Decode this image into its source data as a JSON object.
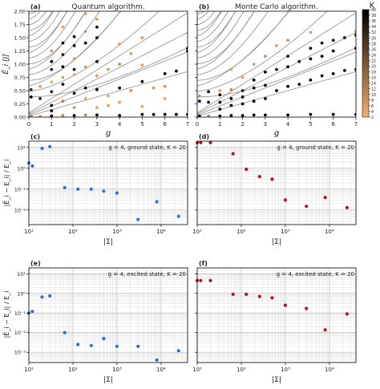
{
  "colors": {
    "blue": "#2f6fd6",
    "red": "#b0141c",
    "orange": "#f0a060",
    "black": "#000000",
    "curve": "#8c8c8c"
  },
  "top_panels": [
    {
      "label": "(a)",
      "title": "Quantum algorithm."
    },
    {
      "label": "(b)",
      "title": "Monte Carlo algorithm."
    }
  ],
  "top_axes": {
    "ylabel": "Ẽ_i [J]",
    "xlabel": "g",
    "xticks": [
      "0",
      "1",
      "2",
      "3",
      "4",
      "5",
      "6",
      "7"
    ],
    "yticks": [
      "0.00",
      "0.25",
      "0.50",
      "0.75",
      "1.00",
      "1.25",
      "1.50",
      "1.75",
      "2.00"
    ]
  },
  "colorbar": {
    "label": "K",
    "ticks": [
      "40",
      "38",
      "36",
      "34",
      "32",
      "30",
      "28",
      "26",
      "24",
      "22",
      "20",
      "18",
      "16",
      "14",
      "12",
      "10",
      "8",
      "6",
      "4",
      "2"
    ]
  },
  "bottom_axes": {
    "ylabel": "|Ẽ_i − E_i| / E_i",
    "xlabel": "|Σ|",
    "xticks": [
      "10¹",
      "10²",
      "10³",
      "10⁴"
    ],
    "yticks_cd": [
      "10⁻²",
      "10⁻¹",
      "10⁰",
      "10¹"
    ],
    "yticks_ef": [
      "10⁻³",
      "10⁻²",
      "10⁻¹",
      "10⁰",
      "10¹"
    ]
  },
  "chart_data": [
    {
      "type": "scatter",
      "panel": "(c)",
      "annotation": "g = 4, ground state, K = 20",
      "color": "blue",
      "xscale": "log",
      "yscale": "log",
      "xlim": [
        10,
        40000
      ],
      "ylim": [
        0.002,
        20
      ],
      "x": [
        10,
        12,
        20,
        30,
        65,
        130,
        260,
        500,
        1000,
        3000,
        8000,
        25000
      ],
      "y": [
        1.8,
        1.3,
        9.0,
        11.0,
        0.12,
        0.1,
        0.1,
        0.08,
        0.065,
        0.0035,
        0.025,
        0.005
      ]
    },
    {
      "type": "scatter",
      "panel": "(d)",
      "annotation": "g = 4, ground state, K = 20",
      "color": "red",
      "xscale": "log",
      "yscale": "log",
      "xlim": [
        10,
        40000
      ],
      "ylim": [
        0.002,
        20
      ],
      "x": [
        10,
        12,
        20,
        65,
        130,
        260,
        500,
        1000,
        3000,
        8000,
        25000
      ],
      "y": [
        17,
        17,
        17,
        5.0,
        0.9,
        0.4,
        0.3,
        0.03,
        0.015,
        0.04,
        0.013
      ]
    },
    {
      "type": "scatter",
      "panel": "(e)",
      "annotation": "g = 4, excited state, K = 20",
      "color": "blue",
      "xscale": "log",
      "yscale": "log",
      "xlim": [
        10,
        40000
      ],
      "ylim": [
        0.0003,
        20
      ],
      "x": [
        10,
        12,
        20,
        30,
        65,
        130,
        260,
        500,
        1000,
        3000,
        8000,
        25000
      ],
      "y": [
        0.1,
        0.12,
        0.65,
        0.75,
        0.01,
        0.0025,
        0.0022,
        0.005,
        0.002,
        0.002,
        0.0004,
        0.0012
      ]
    },
    {
      "type": "scatter",
      "panel": "(f)",
      "annotation": "g = 4, excited state, K = 20",
      "color": "red",
      "xscale": "log",
      "yscale": "log",
      "xlim": [
        10,
        40000
      ],
      "ylim": [
        0.0003,
        20
      ],
      "x": [
        10,
        12,
        20,
        65,
        130,
        260,
        500,
        1000,
        3000,
        8000,
        25000
      ],
      "y": [
        4.5,
        4.5,
        4.5,
        0.9,
        0.9,
        0.7,
        0.6,
        0.25,
        0.17,
        0.014,
        0.09
      ]
    },
    {
      "type": "scatter",
      "panel": "(a)",
      "title": "Quantum algorithm.",
      "xlim": [
        0,
        7
      ],
      "ylim": [
        0,
        2
      ],
      "points": [
        {
          "g": 0.1,
          "e": 0.02,
          "k": 10
        },
        {
          "g": 0.1,
          "e": 0.38,
          "k": 40
        },
        {
          "g": 0.1,
          "e": 0.52,
          "k": 30
        },
        {
          "g": 0.5,
          "e": 0.01,
          "k": 8
        },
        {
          "g": 0.5,
          "e": 0.35,
          "k": 35
        },
        {
          "g": 0.5,
          "e": 0.58,
          "k": 6
        },
        {
          "g": 1.0,
          "e": 0.02,
          "k": 40
        },
        {
          "g": 1.0,
          "e": 0.12,
          "k": 40
        },
        {
          "g": 1.0,
          "e": 0.22,
          "k": 38
        },
        {
          "g": 1.0,
          "e": 0.48,
          "k": 36
        },
        {
          "g": 1.0,
          "e": 0.66,
          "k": 4
        },
        {
          "g": 1.0,
          "e": 0.9,
          "k": 36
        },
        {
          "g": 1.0,
          "e": 1.05,
          "k": 40
        },
        {
          "g": 1.0,
          "e": 1.25,
          "k": 6
        },
        {
          "g": 1.5,
          "e": 0.03,
          "k": 10
        },
        {
          "g": 1.5,
          "e": 0.3,
          "k": 12
        },
        {
          "g": 1.5,
          "e": 0.62,
          "k": 40
        },
        {
          "g": 1.5,
          "e": 0.75,
          "k": 6
        },
        {
          "g": 1.5,
          "e": 0.95,
          "k": 40
        },
        {
          "g": 1.5,
          "e": 1.18,
          "k": 34
        },
        {
          "g": 1.5,
          "e": 1.4,
          "k": 40
        },
        {
          "g": 1.5,
          "e": 1.7,
          "k": 4
        },
        {
          "g": 2.0,
          "e": 0.03,
          "k": 40
        },
        {
          "g": 2.0,
          "e": 0.18,
          "k": 8
        },
        {
          "g": 2.0,
          "e": 0.45,
          "k": 40
        },
        {
          "g": 2.0,
          "e": 0.8,
          "k": 4
        },
        {
          "g": 2.0,
          "e": 0.9,
          "k": 40
        },
        {
          "g": 2.0,
          "e": 1.1,
          "k": 6
        },
        {
          "g": 2.0,
          "e": 1.35,
          "k": 40
        },
        {
          "g": 2.0,
          "e": 1.52,
          "k": 38
        },
        {
          "g": 2.5,
          "e": 0.04,
          "k": 12
        },
        {
          "g": 2.5,
          "e": 0.35,
          "k": 4
        },
        {
          "g": 2.5,
          "e": 0.55,
          "k": 40
        },
        {
          "g": 2.5,
          "e": 0.95,
          "k": 6
        },
        {
          "g": 2.5,
          "e": 1.4,
          "k": 40
        },
        {
          "g": 2.5,
          "e": 1.62,
          "k": 8
        },
        {
          "g": 2.5,
          "e": 1.95,
          "k": 4
        },
        {
          "g": 3.0,
          "e": 0.04,
          "k": 40
        },
        {
          "g": 3.0,
          "e": 0.18,
          "k": 4
        },
        {
          "g": 3.0,
          "e": 0.52,
          "k": 40
        },
        {
          "g": 3.0,
          "e": 0.78,
          "k": 6
        },
        {
          "g": 3.0,
          "e": 1.05,
          "k": 40
        },
        {
          "g": 3.0,
          "e": 1.5,
          "k": 40
        },
        {
          "g": 3.0,
          "e": 1.7,
          "k": 38
        },
        {
          "g": 3.0,
          "e": 1.85,
          "k": 6
        },
        {
          "g": 3.5,
          "e": 0.22,
          "k": 6
        },
        {
          "g": 3.5,
          "e": 0.4,
          "k": 4
        },
        {
          "g": 3.5,
          "e": 0.9,
          "k": 6
        },
        {
          "g": 4.0,
          "e": 0.03,
          "k": 40
        },
        {
          "g": 4.0,
          "e": 0.28,
          "k": 6
        },
        {
          "g": 4.0,
          "e": 0.55,
          "k": 40
        },
        {
          "g": 4.0,
          "e": 1.0,
          "k": 10
        },
        {
          "g": 4.0,
          "e": 1.38,
          "k": 6
        },
        {
          "g": 4.5,
          "e": 0.5,
          "k": 8
        },
        {
          "g": 4.5,
          "e": 1.2,
          "k": 6
        },
        {
          "g": 5.0,
          "e": 0.05,
          "k": 40
        },
        {
          "g": 5.0,
          "e": 0.67,
          "k": 40
        },
        {
          "g": 5.0,
          "e": 0.98,
          "k": 6
        },
        {
          "g": 5.0,
          "e": 1.5,
          "k": 8
        },
        {
          "g": 5.0,
          "e": 0.2,
          "k": 4
        },
        {
          "g": 5.5,
          "e": 0.05,
          "k": 40
        },
        {
          "g": 5.5,
          "e": 0.55,
          "k": 6
        },
        {
          "g": 6.0,
          "e": 0.05,
          "k": 40
        },
        {
          "g": 6.0,
          "e": 0.82,
          "k": 40
        },
        {
          "g": 6.0,
          "e": 0.58,
          "k": 6
        },
        {
          "g": 6.0,
          "e": 0.35,
          "k": 4
        },
        {
          "g": 6.5,
          "e": 0.05,
          "k": 40
        },
        {
          "g": 6.5,
          "e": 0.87,
          "k": 40
        },
        {
          "g": 7.0,
          "e": 0.05,
          "k": 40
        },
        {
          "g": 7.0,
          "e": 1.25,
          "k": 40
        },
        {
          "g": 7.0,
          "e": 1.3,
          "k": 36
        }
      ]
    },
    {
      "type": "scatter",
      "panel": "(b)",
      "title": "Monte Carlo algorithm.",
      "xlim": [
        0,
        7
      ],
      "ylim": [
        0,
        2
      ],
      "points": [
        {
          "g": 0.1,
          "e": 0.02,
          "k": 40
        },
        {
          "g": 0.1,
          "e": 0.3,
          "k": 40
        },
        {
          "g": 0.1,
          "e": 0.4,
          "k": 8
        },
        {
          "g": 0.5,
          "e": 0.02,
          "k": 10
        },
        {
          "g": 0.5,
          "e": 0.28,
          "k": 36
        },
        {
          "g": 0.5,
          "e": 0.48,
          "k": 40
        },
        {
          "g": 1.0,
          "e": 0.02,
          "k": 40
        },
        {
          "g": 1.0,
          "e": 0.15,
          "k": 40
        },
        {
          "g": 1.0,
          "e": 0.28,
          "k": 40
        },
        {
          "g": 1.0,
          "e": 0.42,
          "k": 38
        },
        {
          "g": 1.0,
          "e": 0.5,
          "k": 6
        },
        {
          "g": 1.5,
          "e": 0.03,
          "k": 40
        },
        {
          "g": 1.5,
          "e": 0.22,
          "k": 40
        },
        {
          "g": 1.5,
          "e": 0.35,
          "k": 40
        },
        {
          "g": 1.5,
          "e": 0.52,
          "k": 10
        },
        {
          "g": 1.5,
          "e": 0.9,
          "k": 4
        },
        {
          "g": 2.0,
          "e": 0.03,
          "k": 40
        },
        {
          "g": 2.0,
          "e": 0.25,
          "k": 40
        },
        {
          "g": 2.0,
          "e": 0.38,
          "k": 40
        },
        {
          "g": 2.0,
          "e": 0.5,
          "k": 36
        },
        {
          "g": 2.0,
          "e": 0.75,
          "k": 4
        },
        {
          "g": 2.5,
          "e": 0.04,
          "k": 40
        },
        {
          "g": 2.5,
          "e": 0.3,
          "k": 40
        },
        {
          "g": 2.5,
          "e": 0.55,
          "k": 38
        },
        {
          "g": 2.5,
          "e": 0.7,
          "k": 40
        },
        {
          "g": 2.5,
          "e": 1.0,
          "k": 6
        },
        {
          "g": 3.0,
          "e": 0.04,
          "k": 40
        },
        {
          "g": 3.0,
          "e": 0.35,
          "k": 40
        },
        {
          "g": 3.0,
          "e": 0.6,
          "k": 40
        },
        {
          "g": 3.0,
          "e": 0.85,
          "k": 38
        },
        {
          "g": 3.0,
          "e": 1.15,
          "k": 8
        },
        {
          "g": 3.5,
          "e": 0.5,
          "k": 40
        },
        {
          "g": 3.5,
          "e": 0.9,
          "k": 36
        },
        {
          "g": 3.5,
          "e": 1.35,
          "k": 6
        },
        {
          "g": 4.0,
          "e": 0.04,
          "k": 40
        },
        {
          "g": 4.0,
          "e": 0.58,
          "k": 40
        },
        {
          "g": 4.0,
          "e": 0.95,
          "k": 40
        },
        {
          "g": 4.0,
          "e": 1.15,
          "k": 36
        },
        {
          "g": 4.0,
          "e": 1.45,
          "k": 8
        },
        {
          "g": 4.5,
          "e": 0.62,
          "k": 40
        },
        {
          "g": 4.5,
          "e": 1.05,
          "k": 38
        },
        {
          "g": 5.0,
          "e": 0.05,
          "k": 40
        },
        {
          "g": 5.0,
          "e": 0.7,
          "k": 40
        },
        {
          "g": 5.0,
          "e": 1.1,
          "k": 40
        },
        {
          "g": 5.0,
          "e": 1.3,
          "k": 36
        },
        {
          "g": 5.0,
          "e": 1.6,
          "k": 6
        },
        {
          "g": 5.5,
          "e": 0.78,
          "k": 40
        },
        {
          "g": 5.5,
          "e": 1.15,
          "k": 38
        },
        {
          "g": 5.5,
          "e": 1.4,
          "k": 36
        },
        {
          "g": 6.0,
          "e": 0.05,
          "k": 40
        },
        {
          "g": 6.0,
          "e": 0.82,
          "k": 40
        },
        {
          "g": 6.0,
          "e": 1.25,
          "k": 40
        },
        {
          "g": 6.0,
          "e": 1.45,
          "k": 36
        },
        {
          "g": 6.5,
          "e": 0.88,
          "k": 40
        },
        {
          "g": 6.5,
          "e": 1.5,
          "k": 38
        },
        {
          "g": 7.0,
          "e": 0.05,
          "k": 40
        },
        {
          "g": 7.0,
          "e": 0.9,
          "k": 40
        },
        {
          "g": 7.0,
          "e": 1.3,
          "k": 40
        },
        {
          "g": 7.0,
          "e": 1.55,
          "k": 36
        },
        {
          "g": 7.0,
          "e": 1.62,
          "k": 10
        }
      ]
    }
  ]
}
